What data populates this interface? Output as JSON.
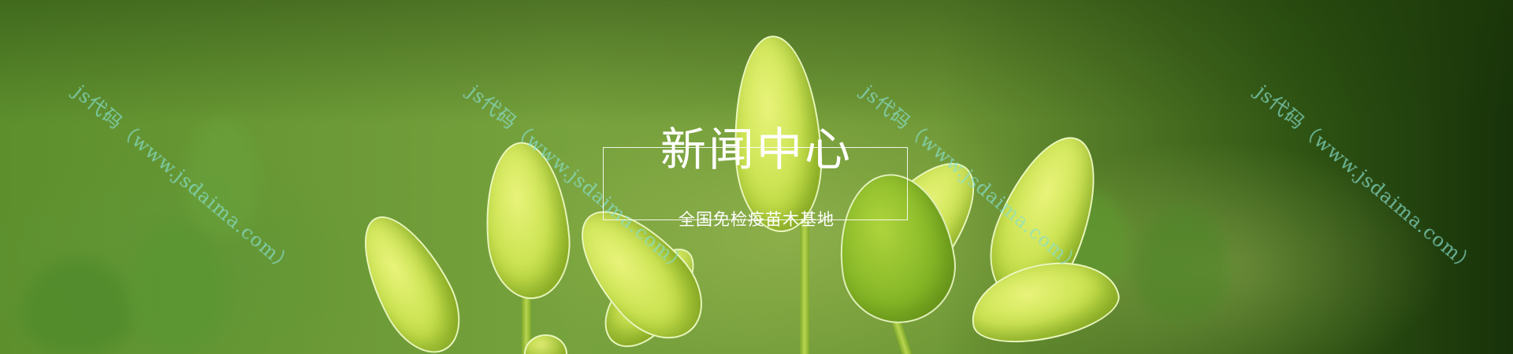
{
  "banner": {
    "title": "新闻中心",
    "subtitle": "全国免检疫苗木基地"
  },
  "watermarks": [
    "js代码（www.jsdaima.com）",
    "js代码（www.jsdaima.com）",
    "js代码（www.jsdaima.com）",
    "js代码（www.jsdaima.com）"
  ],
  "colors": {
    "background": "#6f9836",
    "leaf": "#cde454",
    "text": "#ffffff",
    "watermark": "#78dcc8"
  }
}
